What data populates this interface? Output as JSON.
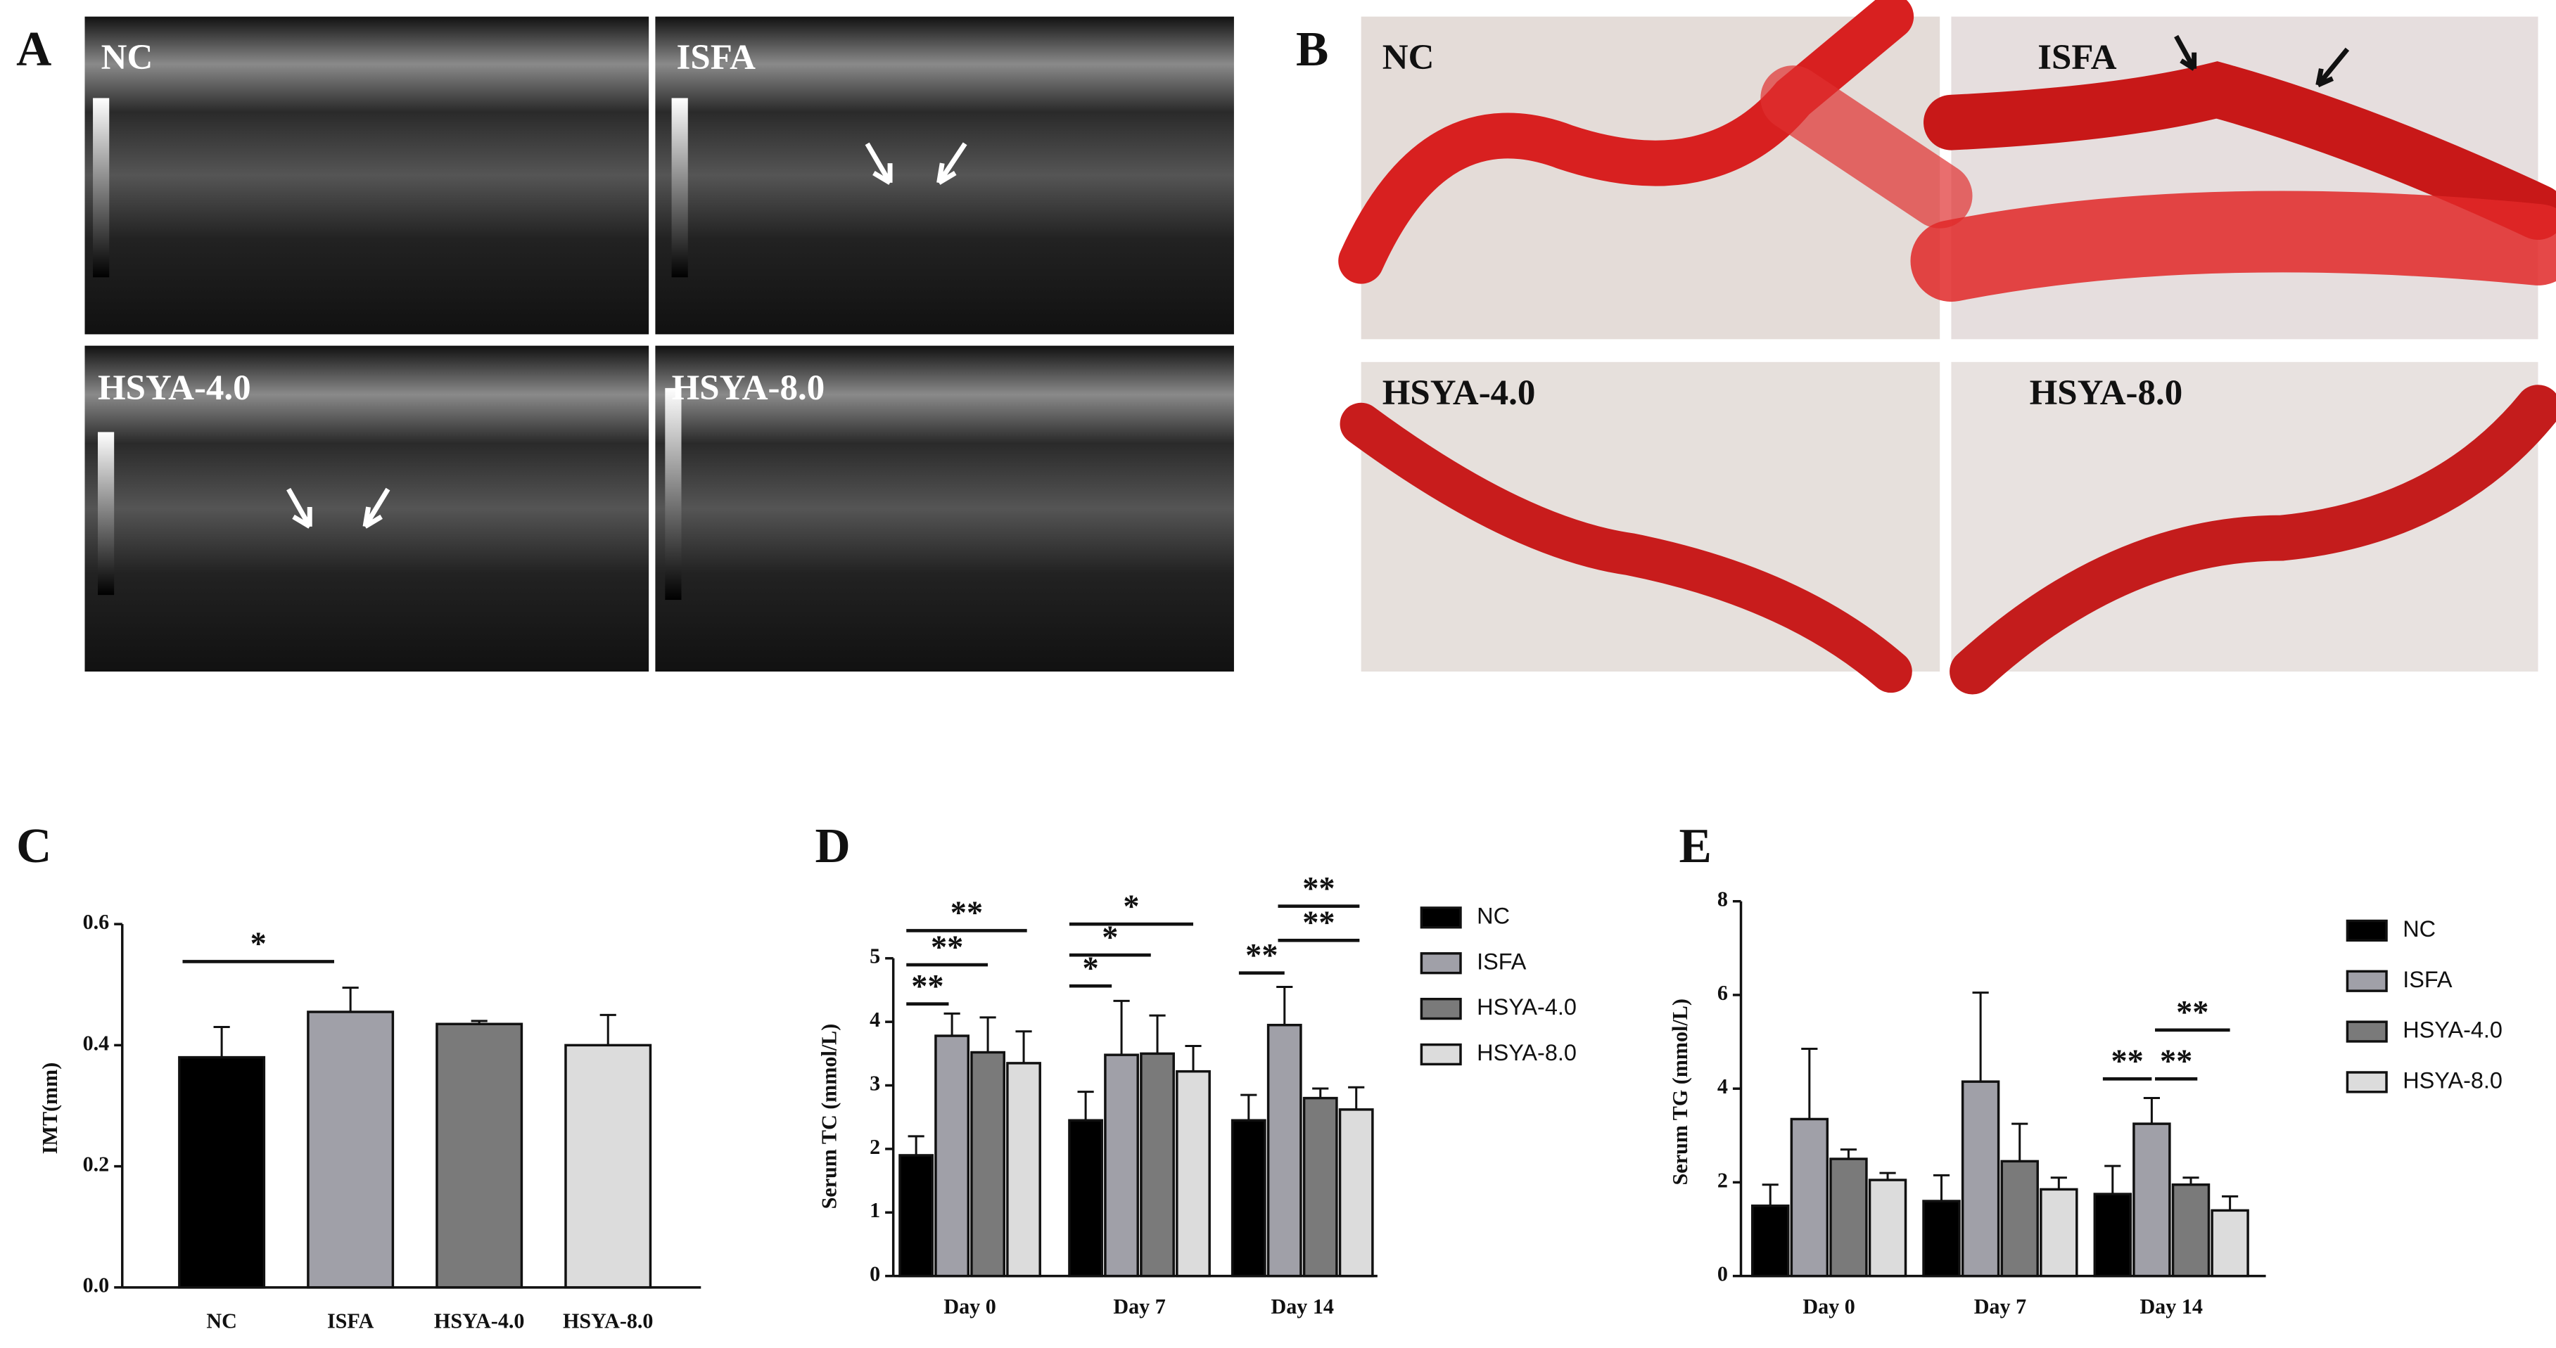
{
  "images": {
    "A": {
      "label": "A",
      "panels": [
        "NC",
        "ISFA",
        "HSYA-4.0",
        "HSYA-8.0"
      ]
    },
    "B": {
      "label": "B",
      "panels": [
        "NC",
        "ISFA",
        "HSYA-4.0",
        "HSYA-8.0"
      ]
    }
  },
  "chart_data": [
    {
      "type": "bar",
      "label": "C",
      "ylabel": "IMT(mm)",
      "categories": [
        "NC",
        "ISFA",
        "HSYA-4.0",
        "HSYA-8.0"
      ],
      "values": [
        0.38,
        0.455,
        0.435,
        0.4
      ],
      "errors": [
        0.05,
        0.04,
        0.005,
        0.05
      ],
      "colors": [
        "#000000",
        "#a0a0a8",
        "#7a7a7a",
        "#dcdcdc"
      ],
      "ylim": [
        0,
        0.6
      ],
      "yticks": [
        {
          "value": 0,
          "label": "0.0"
        },
        {
          "value": 0.2,
          "label": "0.2"
        },
        {
          "value": 0.4,
          "label": "0.4"
        },
        {
          "value": 0.6,
          "label": "0.6"
        }
      ],
      "annotations": [
        "*"
      ]
    },
    {
      "type": "grouped-bar",
      "label": "D",
      "ylabel": "Serum  TC (mmol/L)",
      "categories": [
        "Day 0",
        "Day 7",
        "Day 14"
      ],
      "series": [
        {
          "name": "NC",
          "color": "#000000",
          "values": [
            1.9,
            2.45,
            2.45
          ],
          "errors": [
            0.3,
            0.45,
            0.4
          ]
        },
        {
          "name": "ISFA",
          "color": "#a0a0a8",
          "values": [
            3.78,
            3.48,
            3.95
          ],
          "errors": [
            0.35,
            0.85,
            0.6
          ]
        },
        {
          "name": "HSYA-4.0",
          "color": "#7a7a7a",
          "values": [
            3.52,
            3.5,
            2.8
          ],
          "errors": [
            0.55,
            0.6,
            0.15
          ]
        },
        {
          "name": "HSYA-8.0",
          "color": "#dcdcdc",
          "values": [
            3.35,
            3.22,
            2.62
          ],
          "errors": [
            0.5,
            0.4,
            0.35
          ]
        }
      ],
      "ylim": [
        0,
        5
      ],
      "yticks": [
        0,
        1,
        2,
        3,
        4,
        5
      ],
      "annotations": [
        "**",
        "**",
        "**",
        "*",
        "*",
        "*",
        "**",
        "**",
        "**"
      ]
    },
    {
      "type": "grouped-bar",
      "label": "E",
      "ylabel": "Serum  TG (mmol/L)",
      "categories": [
        "Day 0",
        "Day 7",
        "Day 14"
      ],
      "series": [
        {
          "name": "NC",
          "color": "#000000",
          "values": [
            1.5,
            1.6,
            1.75
          ],
          "errors": [
            0.45,
            0.55,
            0.6
          ]
        },
        {
          "name": "ISFA",
          "color": "#a0a0a8",
          "values": [
            3.35,
            4.15,
            3.25
          ],
          "errors": [
            1.5,
            1.9,
            0.55
          ]
        },
        {
          "name": "HSYA-4.0",
          "color": "#7a7a7a",
          "values": [
            2.5,
            2.45,
            1.95
          ],
          "errors": [
            0.2,
            0.8,
            0.15
          ]
        },
        {
          "name": "HSYA-8.0",
          "color": "#dcdcdc",
          "values": [
            2.05,
            1.85,
            1.4
          ],
          "errors": [
            0.15,
            0.25,
            0.3
          ]
        }
      ],
      "ylim": [
        0,
        8
      ],
      "yticks": [
        0,
        2,
        4,
        6,
        8
      ],
      "annotations": [
        "**",
        "**",
        "**"
      ]
    }
  ]
}
